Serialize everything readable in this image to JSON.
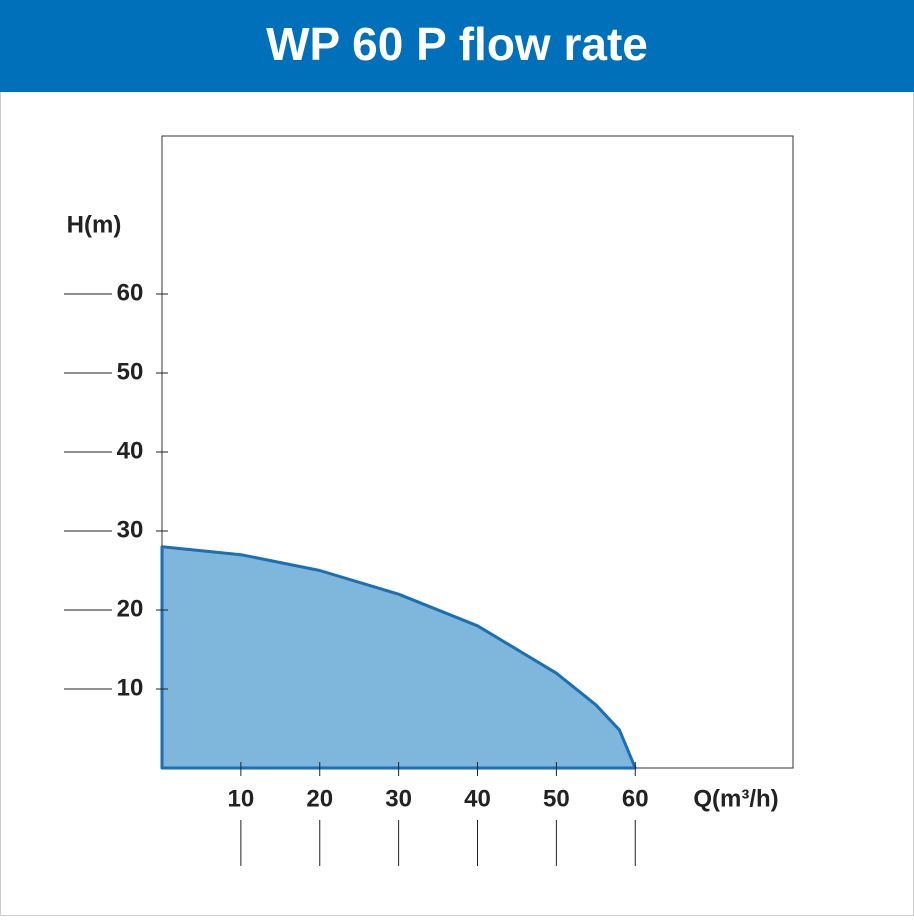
{
  "chart_data": {
    "type": "area",
    "title": "WP 60 P flow rate",
    "x_label": "Q(m³/h)",
    "y_label": "H(m)",
    "x": [
      0,
      10,
      20,
      30,
      40,
      50,
      55,
      58,
      60
    ],
    "series": [
      {
        "name": "WP 60 P",
        "color": "#1a6fb5",
        "fill": "#7fb6dc",
        "values": [
          28,
          27,
          25,
          22,
          18,
          12,
          8,
          4.8,
          0
        ]
      }
    ],
    "xlim": [
      0,
      80
    ],
    "ylim": [
      0,
      80
    ],
    "xticks": [
      10,
      20,
      30,
      40,
      50,
      60
    ],
    "yticks": [
      10,
      20,
      30,
      40,
      50,
      60
    ]
  }
}
